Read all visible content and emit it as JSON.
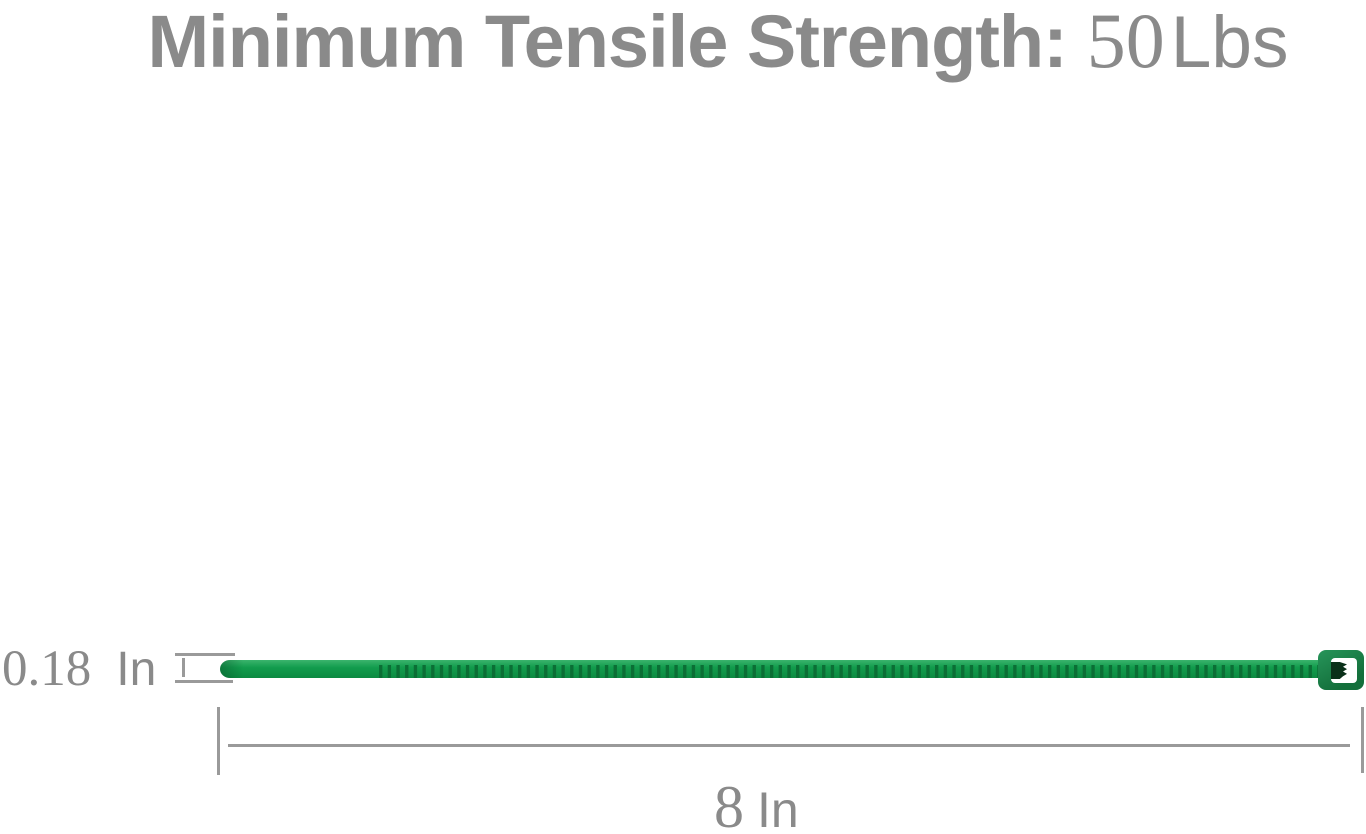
{
  "title": {
    "label": "Minimum Tensile Strength:",
    "value_number": "50",
    "value_unit": "Lbs"
  },
  "width_dimension": {
    "value": "0.18",
    "unit": "In"
  },
  "length_dimension": {
    "value": "8",
    "unit": "In"
  },
  "tie": {
    "description": "green nylon cable zip tie with serrated strap, pointed tip and locking head"
  },
  "colors": {
    "text_gray": "#8a8a8a",
    "line_gray": "#9a9a9a",
    "tie_green_light": "#3bb46d",
    "tie_green": "#129c4d",
    "tie_green_dark": "#0c8a41",
    "tie_tooth": "#0b6e35",
    "head_green_light": "#27955a",
    "head_green_dark": "#136f3b",
    "pawl_dark": "#0a3019",
    "slot_white": "#ffffff"
  }
}
